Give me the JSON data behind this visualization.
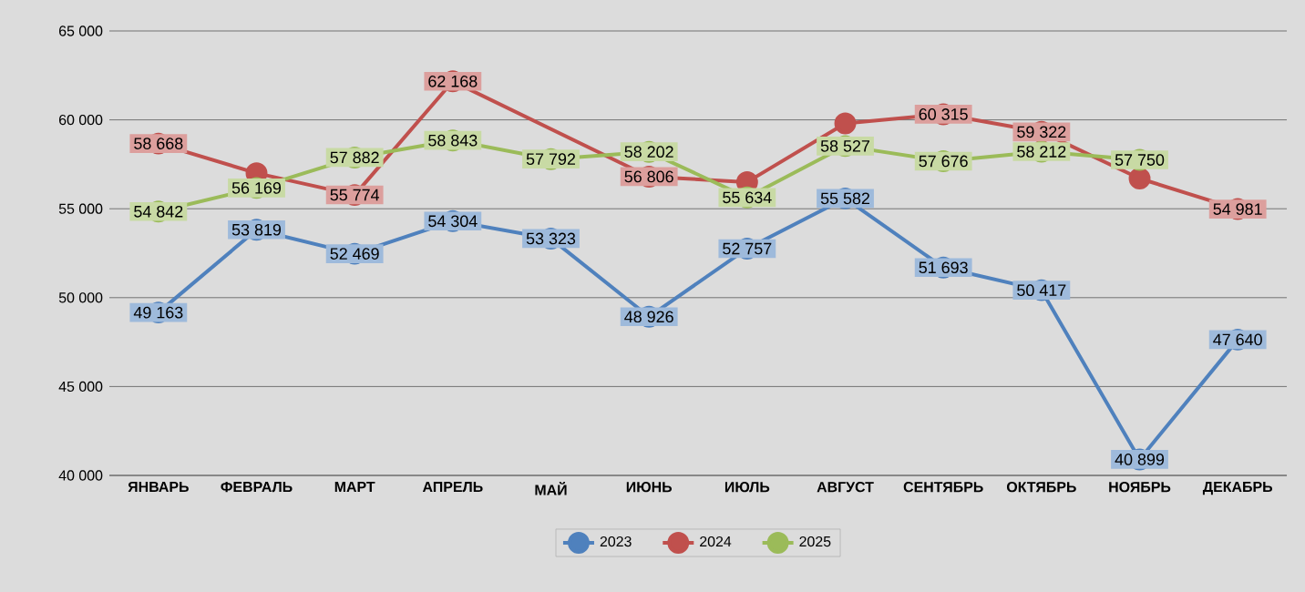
{
  "chart_data": {
    "type": "line",
    "categories": [
      "ЯНВАРЬ",
      "ФЕВРАЛЬ",
      "МАРТ",
      "АПРЕЛЬ",
      "МАЙ",
      "ИЮНЬ",
      "ИЮЛЬ",
      "АВГУСТ",
      "СЕНТЯБРЬ",
      "ОКТЯБРЬ",
      "НОЯБРЬ",
      "ДЕКАБРЬ"
    ],
    "series": [
      {
        "name": "2023",
        "color": "#4f81bd",
        "values": [
          49163,
          53819,
          52469,
          54304,
          53323,
          48926,
          52757,
          55582,
          51693,
          50417,
          40899,
          47640
        ],
        "value_labels": [
          "49 163",
          "53 819",
          "52 469",
          "54 304",
          "53 323",
          "48 926",
          "52 757",
          "55 582",
          "51 693",
          "50 417",
          "40 899",
          "47 640"
        ]
      },
      {
        "name": "2024",
        "color": "#c0504d",
        "values": [
          58668,
          57000,
          55774,
          62168,
          null,
          56806,
          56500,
          59800,
          60315,
          59322,
          56700,
          54981
        ],
        "value_labels": [
          "58 668",
          null,
          "55 774",
          "62 168",
          null,
          "56 806",
          null,
          null,
          "60 315",
          "59 322",
          null,
          "54 981"
        ]
      },
      {
        "name": "2025",
        "color": "#9bbb59",
        "values": [
          54842,
          56169,
          57882,
          58843,
          57792,
          58202,
          55634,
          58527,
          57676,
          58212,
          57750,
          null
        ],
        "value_labels": [
          "54 842",
          "56 169",
          "57 882",
          "58 843",
          "57 792",
          "58 202",
          "55 634",
          "58 527",
          "57 676",
          "58 212",
          "57 750",
          null
        ]
      }
    ],
    "ylim": [
      40000,
      65000
    ],
    "yticks": [
      {
        "value": 40000,
        "label": "40 000"
      },
      {
        "value": 45000,
        "label": "45 000"
      },
      {
        "value": 50000,
        "label": "50 000"
      },
      {
        "value": 55000,
        "label": "55 000"
      },
      {
        "value": 60000,
        "label": "60 000"
      },
      {
        "value": 65000,
        "label": "65 000"
      }
    ],
    "grid": "y",
    "legend": "bottom",
    "marker": "circle",
    "line_style": "solid"
  }
}
